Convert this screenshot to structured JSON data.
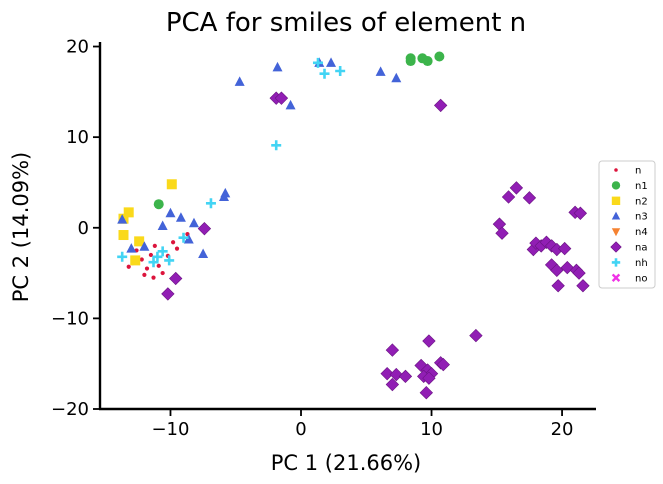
{
  "chart_data": {
    "type": "scatter",
    "title": "PCA for smiles of element n",
    "xlabel": "PC 1 (21.66%)",
    "ylabel": "PC 2 (14.09%)",
    "xlim": [
      -15.4,
      22.6
    ],
    "ylim": [
      -20,
      20.5
    ],
    "xticks": [
      -10,
      0,
      10,
      20
    ],
    "yticks": [
      -20,
      -10,
      0,
      10,
      20
    ],
    "xtick_labels": [
      "−10",
      "0",
      "10",
      "20"
    ],
    "ytick_labels": [
      "−20",
      "−10",
      "0",
      "10",
      "20"
    ],
    "grid": false,
    "legend_position": "center-right",
    "series": [
      {
        "name": "n",
        "marker": "circle-small",
        "color": "#dc143c",
        "points": [
          [
            -12.6,
            -2.5
          ],
          [
            -12.2,
            -3.5
          ],
          [
            -11.8,
            -4.5
          ],
          [
            -11.5,
            -3.0
          ],
          [
            -11.2,
            -2.0
          ],
          [
            -10.9,
            -4.2
          ],
          [
            -10.6,
            -5.0
          ],
          [
            -12.0,
            -5.2
          ],
          [
            -11.3,
            -5.5
          ],
          [
            -10.2,
            -3.1
          ],
          [
            -9.5,
            -2.3
          ],
          [
            -8.7,
            -0.7
          ],
          [
            -13.2,
            -4.3
          ],
          [
            -12.9,
            -3.9
          ],
          [
            -9.8,
            -1.6
          ]
        ]
      },
      {
        "name": "n1",
        "marker": "circle",
        "color": "#3cb44b",
        "points": [
          [
            -10.9,
            2.6
          ],
          [
            8.4,
            18.4
          ],
          [
            8.4,
            18.7
          ],
          [
            9.3,
            18.7
          ],
          [
            9.7,
            18.4
          ],
          [
            10.6,
            18.9
          ]
        ]
      },
      {
        "name": "n2",
        "marker": "square",
        "color": "#fad91a",
        "points": [
          [
            -9.9,
            4.8
          ],
          [
            -13.6,
            1.0
          ],
          [
            -13.2,
            1.7
          ],
          [
            -13.6,
            -0.8
          ],
          [
            -12.4,
            -1.5
          ],
          [
            -12.7,
            -3.6
          ]
        ]
      },
      {
        "name": "n3",
        "marker": "triangle-up",
        "color": "#4363d8",
        "points": [
          [
            -13.7,
            0.9
          ],
          [
            -13.0,
            -2.3
          ],
          [
            -12.0,
            -2.1
          ],
          [
            -10.6,
            0.2
          ],
          [
            -10.0,
            1.6
          ],
          [
            -9.2,
            1.1
          ],
          [
            -8.2,
            0.5
          ],
          [
            -8.6,
            -1.3
          ],
          [
            -5.8,
            3.8
          ],
          [
            -5.9,
            3.4
          ],
          [
            -7.5,
            -2.9
          ],
          [
            -4.7,
            16.1
          ],
          [
            -1.8,
            17.7
          ],
          [
            -0.8,
            13.5
          ],
          [
            1.4,
            18.2
          ],
          [
            2.3,
            18.2
          ],
          [
            6.1,
            17.2
          ],
          [
            7.3,
            16.5
          ]
        ]
      },
      {
        "name": "n4",
        "marker": "triangle-down",
        "color": "#f58231",
        "points": []
      },
      {
        "name": "na",
        "marker": "diamond",
        "color": "#911eb4",
        "points": [
          [
            -7.4,
            -0.1
          ],
          [
            -10.2,
            -7.3
          ],
          [
            -9.6,
            -5.6
          ],
          [
            -1.9,
            14.3
          ],
          [
            -1.5,
            14.3
          ],
          [
            10.7,
            13.5
          ],
          [
            15.2,
            0.4
          ],
          [
            15.4,
            -0.6
          ],
          [
            15.9,
            3.4
          ],
          [
            16.5,
            4.4
          ],
          [
            17.5,
            3.3
          ],
          [
            17.8,
            -2.4
          ],
          [
            18.0,
            -1.7
          ],
          [
            18.4,
            -2.0
          ],
          [
            18.8,
            -1.6
          ],
          [
            19.2,
            -2.0
          ],
          [
            19.6,
            -2.4
          ],
          [
            19.2,
            -4.1
          ],
          [
            19.6,
            -4.7
          ],
          [
            20.2,
            -2.3
          ],
          [
            20.4,
            -4.4
          ],
          [
            21.0,
            1.7
          ],
          [
            21.4,
            1.6
          ],
          [
            21.1,
            -4.7
          ],
          [
            21.3,
            -5.0
          ],
          [
            21.6,
            -6.4
          ],
          [
            19.7,
            -6.4
          ],
          [
            13.4,
            -11.9
          ],
          [
            9.8,
            -12.5
          ],
          [
            10.7,
            -14.9
          ],
          [
            10.9,
            -15.1
          ],
          [
            7.0,
            -13.5
          ],
          [
            9.2,
            -15.2
          ],
          [
            9.7,
            -15.7
          ],
          [
            10.0,
            -16.1
          ],
          [
            9.4,
            -16.4
          ],
          [
            9.8,
            -16.6
          ],
          [
            6.6,
            -16.1
          ],
          [
            7.3,
            -16.2
          ],
          [
            8.0,
            -16.4
          ],
          [
            7.0,
            -17.3
          ],
          [
            9.6,
            -18.2
          ]
        ]
      },
      {
        "name": "nh",
        "marker": "plus",
        "color": "#42d4f4",
        "points": [
          [
            -13.7,
            -3.2
          ],
          [
            -11.3,
            -3.8
          ],
          [
            -11.0,
            -3.2
          ],
          [
            -10.6,
            -2.6
          ],
          [
            -10.1,
            -3.6
          ],
          [
            -9.0,
            -1.1
          ],
          [
            -6.9,
            2.7
          ],
          [
            -1.9,
            9.1
          ],
          [
            1.3,
            18.2
          ],
          [
            1.8,
            17.0
          ],
          [
            3.0,
            17.3
          ]
        ]
      },
      {
        "name": "no",
        "marker": "x",
        "color": "#f032e6",
        "points": []
      }
    ]
  }
}
